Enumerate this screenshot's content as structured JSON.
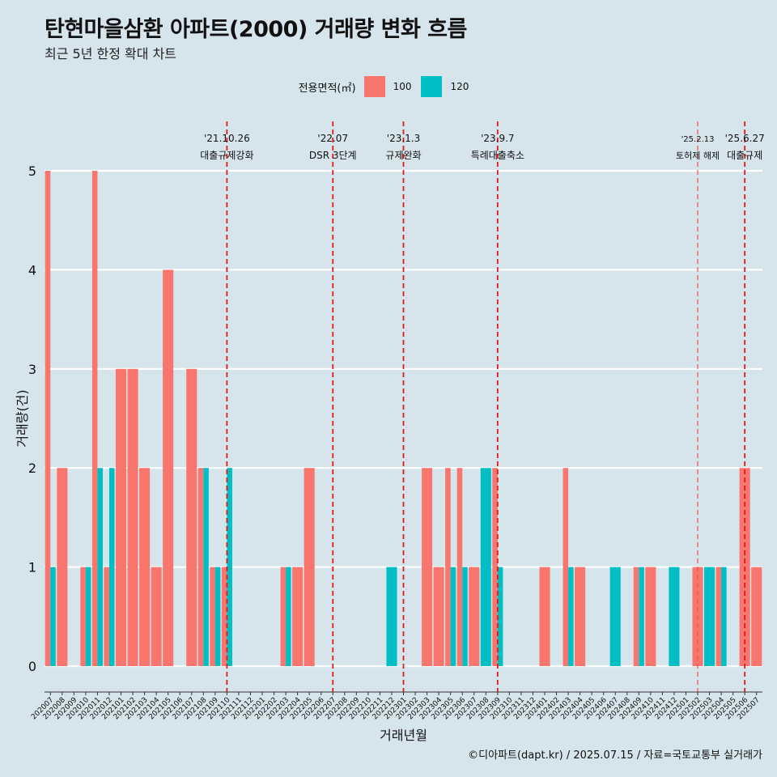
{
  "chart_data": {
    "type": "bar",
    "title": "탄현마을삼환 아파트(2000) 거래량 변화 흐름",
    "subtitle": "최근 5년 한정 확대 차트",
    "xlabel": "거래년월",
    "ylabel": "거래량(건)",
    "ylim": [
      0,
      5
    ],
    "yticks": [
      0,
      1,
      2,
      3,
      4,
      5
    ],
    "legend": {
      "title": "전용면적(㎡)",
      "placement": "top"
    },
    "categories": [
      "202007",
      "202008",
      "202009",
      "202010",
      "202011",
      "202012",
      "202101",
      "202102",
      "202103",
      "202104",
      "202105",
      "202106",
      "202107",
      "202108",
      "202109",
      "202110",
      "202111",
      "202112",
      "202201",
      "202202",
      "202203",
      "202204",
      "202205",
      "202206",
      "202207",
      "202208",
      "202209",
      "202210",
      "202211",
      "202212",
      "202301",
      "202302",
      "202303",
      "202304",
      "202305",
      "202306",
      "202307",
      "202308",
      "202309",
      "202310",
      "202311",
      "202312",
      "202401",
      "202402",
      "202403",
      "202404",
      "202405",
      "202406",
      "202407",
      "202408",
      "202409",
      "202410",
      "202411",
      "202412",
      "202501",
      "202502",
      "202503",
      "202504",
      "202505",
      "202506",
      "202507"
    ],
    "series": [
      {
        "name": "100",
        "color": "#f8766d",
        "values": [
          5,
          2,
          0,
          1,
          5,
          1,
          3,
          3,
          2,
          1,
          4,
          0,
          3,
          2,
          1,
          1,
          0,
          0,
          0,
          0,
          1,
          1,
          2,
          0,
          0,
          0,
          0,
          0,
          0,
          0,
          0,
          0,
          2,
          1,
          2,
          2,
          1,
          0,
          2,
          0,
          0,
          0,
          1,
          0,
          2,
          1,
          0,
          0,
          0,
          0,
          1,
          1,
          0,
          0,
          0,
          1,
          0,
          1,
          0,
          2,
          1
        ]
      },
      {
        "name": "120",
        "color": "#00bfc4",
        "values": [
          1,
          0,
          0,
          1,
          2,
          2,
          0,
          0,
          0,
          0,
          0,
          0,
          0,
          2,
          1,
          2,
          0,
          0,
          0,
          0,
          1,
          0,
          0,
          0,
          0,
          0,
          0,
          0,
          0,
          1,
          0,
          0,
          0,
          0,
          1,
          1,
          0,
          2,
          1,
          0,
          0,
          0,
          0,
          0,
          1,
          0,
          0,
          0,
          1,
          0,
          1,
          0,
          0,
          1,
          0,
          0,
          1,
          1,
          0,
          0,
          0
        ]
      }
    ],
    "events": [
      {
        "date": "'21.10.26",
        "label": "대출규제강화",
        "category": "202110",
        "style": "major"
      },
      {
        "date": "'22.07",
        "label": "DSR 3단계",
        "category": "202207",
        "style": "major"
      },
      {
        "date": "'23.1.3",
        "label": "규제완화",
        "category": "202301",
        "style": "major"
      },
      {
        "date": "'23.9.7",
        "label": "특례대출축소",
        "category": "202309",
        "style": "major"
      },
      {
        "date": "'25.2.13",
        "label": "토허제 해제",
        "category": "202502",
        "style": "minor"
      },
      {
        "date": "'25.6.27",
        "label": "대출규제",
        "category": "202506",
        "style": "major"
      }
    ],
    "grid": true
  },
  "caption": "©디아파트(dapt.kr) / 2025.07.15 / 자료=국토교통부 실거래가"
}
